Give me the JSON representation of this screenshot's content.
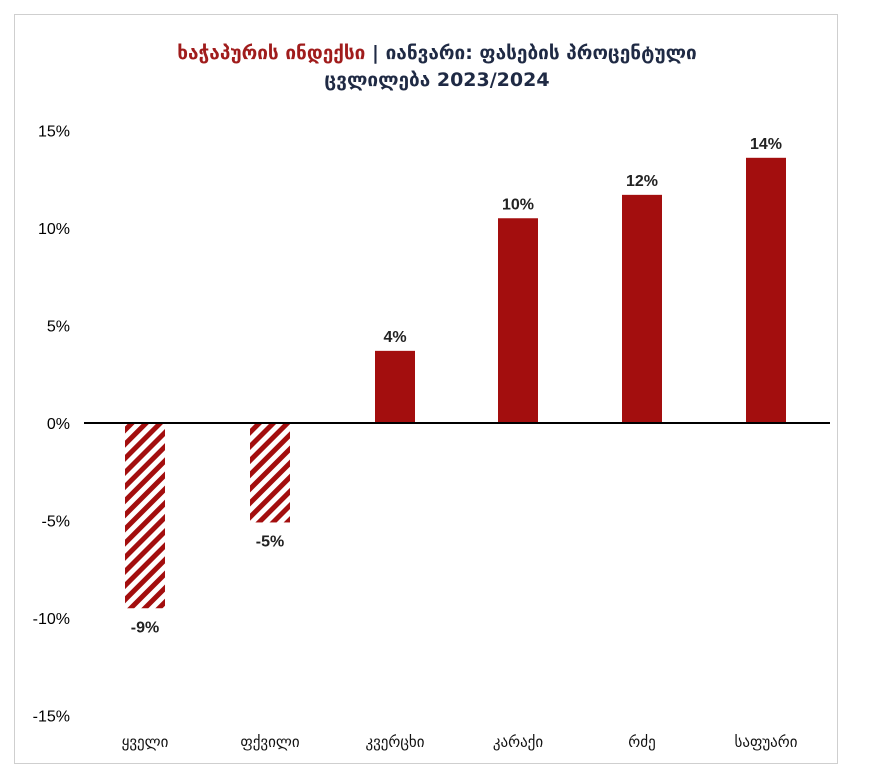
{
  "header": {
    "title_part1": "ხაჭაპურის ინდექსი",
    "title_separator": "|",
    "title_part2": "იანვარი: ფასების პროცენტული",
    "title_line2": "ცვლილება 2023/2024"
  },
  "chart_data": {
    "type": "bar",
    "title": "ხაჭაპურის ინდექსი | იანვარი: ფასების პროცენტული ცვლილება 2023/2024",
    "categories": [
      "ყველი",
      "ფქვილი",
      "კვერცხი",
      "კარაქი",
      "რძე",
      "საფუარი"
    ],
    "values": [
      -9.5,
      -5.1,
      3.7,
      10.5,
      11.7,
      13.6
    ],
    "data_labels": [
      "-9%",
      "-5%",
      "4%",
      "10%",
      "12%",
      "14%"
    ],
    "pattern": [
      "hatched",
      "hatched",
      "solid",
      "solid",
      "solid",
      "solid"
    ],
    "yticks": [
      15,
      10,
      5,
      0,
      -5,
      -10,
      -15
    ],
    "ytick_labels": [
      "15%",
      "10%",
      "5%",
      "0%",
      "-5%",
      "-10%",
      "-15%"
    ],
    "ylim": [
      -15,
      15
    ],
    "grid": false,
    "colors": {
      "bar": "#a30e0e",
      "title_accent": "#a01c1c",
      "title_dark": "#1f2a44",
      "axis": "#000000"
    }
  }
}
